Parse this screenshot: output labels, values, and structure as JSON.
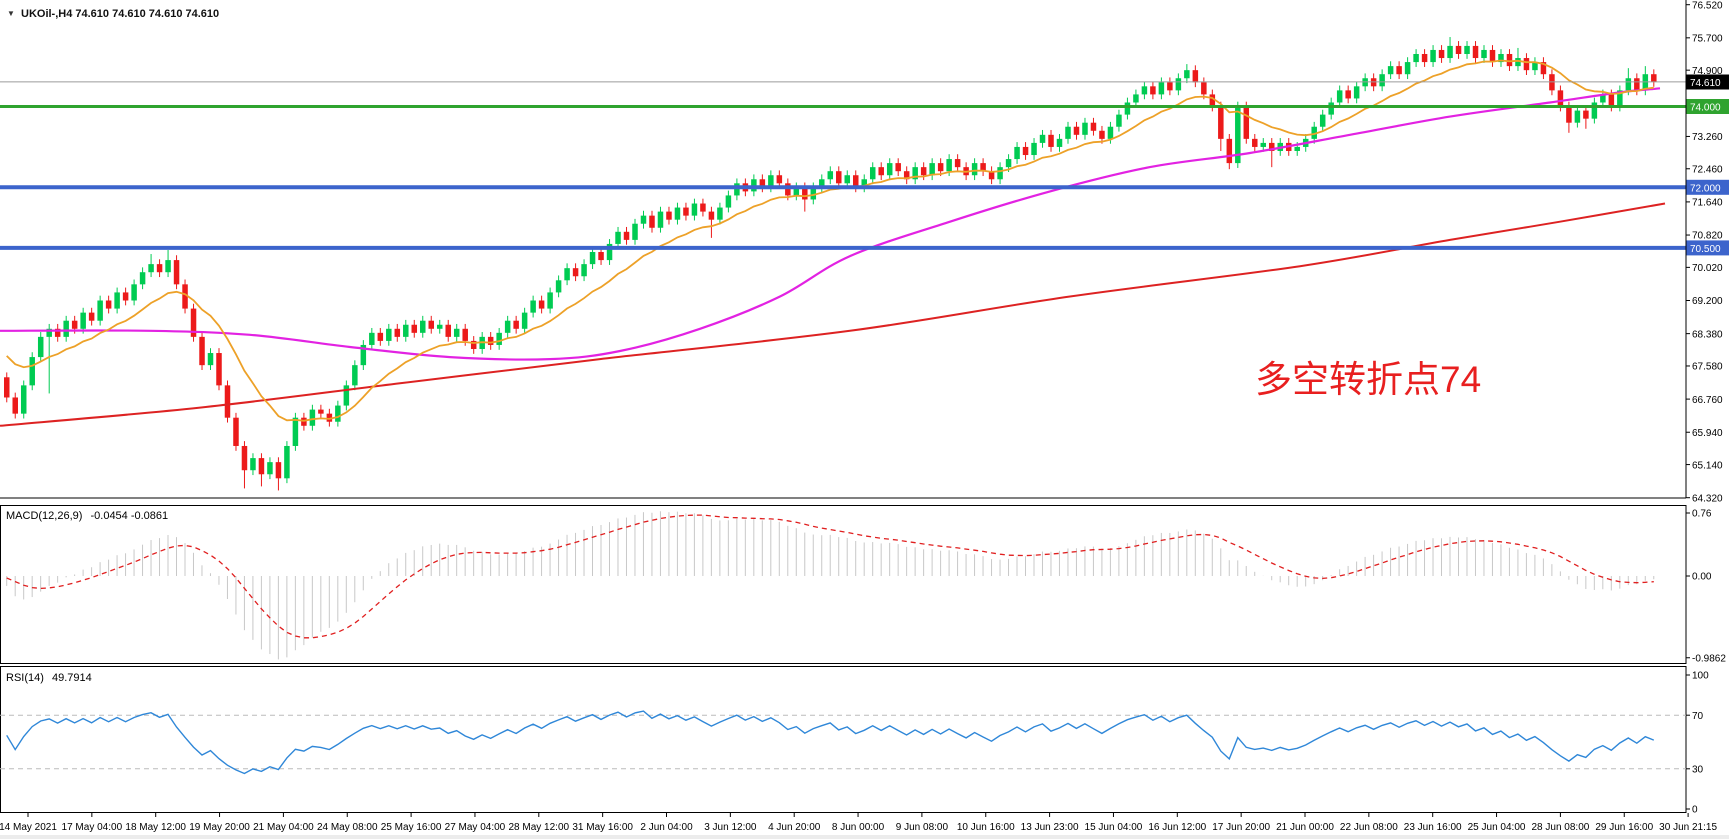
{
  "header": {
    "dropdown_icon": "▼",
    "symbol_line": "UKOil-,H4 74.610 74.610 74.610 74.610"
  },
  "annotation": {
    "text": "多空转折点74",
    "color": "#e81f1f"
  },
  "chart_data": {
    "type": "candlestick",
    "symbol": "UKOil-",
    "timeframe": "H4",
    "quote_ohlc": [
      "74.610",
      "74.610",
      "74.610",
      "74.610"
    ],
    "price_axis": {
      "ticks": [
        {
          "label": "76.520",
          "price": 76.52
        },
        {
          "label": "75.700",
          "price": 75.7
        },
        {
          "label": "74.900",
          "price": 74.9
        },
        {
          "label": "73.260",
          "price": 73.26
        },
        {
          "label": "72.460",
          "price": 72.46
        },
        {
          "label": "71.640",
          "price": 71.64
        },
        {
          "label": "70.820",
          "price": 70.82
        },
        {
          "label": "70.020",
          "price": 70.02
        },
        {
          "label": "69.200",
          "price": 69.2
        },
        {
          "label": "68.380",
          "price": 68.38
        },
        {
          "label": "67.580",
          "price": 67.58
        },
        {
          "label": "66.760",
          "price": 66.76
        },
        {
          "label": "65.940",
          "price": 65.94
        },
        {
          "label": "65.140",
          "price": 65.14
        },
        {
          "label": "64.320",
          "price": 64.32
        }
      ],
      "top_price": 76.52,
      "bottom_price": 64.32
    },
    "current_price": {
      "label": "74.610",
      "price": 74.61,
      "line_color": "#9b9b9b",
      "box_bg": "#000000"
    },
    "hlines": [
      {
        "label": "74.000",
        "price": 74.0,
        "color": "#2fa32f",
        "width": 3
      },
      {
        "label": "72.000",
        "price": 72.0,
        "color": "#3c64cc",
        "width": 4
      },
      {
        "label": "70.500",
        "price": 70.5,
        "color": "#3c64cc",
        "width": 4
      }
    ],
    "candles": {
      "up_color": "#00cb52",
      "down_color": "#ec1a1a",
      "first_open": 67.3,
      "default_wick": 0.12,
      "closes": [
        66.8,
        66.4,
        67.1,
        67.8,
        68.3,
        68.5,
        68.3,
        68.7,
        68.5,
        68.9,
        68.7,
        69.2,
        69.0,
        69.4,
        69.2,
        69.6,
        69.9,
        70.1,
        69.9,
        70.2,
        69.6,
        69.0,
        68.3,
        67.6,
        67.9,
        67.1,
        66.3,
        65.6,
        65.0,
        65.3,
        64.9,
        65.2,
        64.8,
        65.6,
        66.3,
        66.1,
        66.5,
        66.4,
        66.2,
        66.6,
        67.1,
        67.6,
        68.1,
        68.4,
        68.2,
        68.5,
        68.3,
        68.6,
        68.4,
        68.7,
        68.5,
        68.6,
        68.3,
        68.5,
        68.2,
        68.0,
        68.3,
        68.1,
        68.4,
        68.7,
        68.5,
        68.9,
        69.2,
        69.0,
        69.4,
        69.7,
        70.0,
        69.8,
        70.1,
        70.4,
        70.2,
        70.6,
        70.9,
        70.7,
        71.1,
        71.3,
        71.0,
        71.4,
        71.2,
        71.5,
        71.3,
        71.6,
        71.4,
        71.2,
        71.5,
        71.8,
        72.1,
        71.9,
        72.2,
        72.0,
        72.3,
        72.1,
        71.8,
        72.0,
        71.7,
        72.0,
        72.2,
        72.4,
        72.1,
        72.3,
        72.0,
        72.2,
        72.5,
        72.3,
        72.6,
        72.4,
        72.2,
        72.5,
        72.3,
        72.6,
        72.4,
        72.7,
        72.5,
        72.3,
        72.6,
        72.4,
        72.2,
        72.5,
        72.7,
        73.0,
        72.8,
        73.1,
        73.3,
        73.0,
        73.2,
        73.5,
        73.3,
        73.6,
        73.4,
        73.2,
        73.5,
        73.8,
        74.1,
        74.3,
        74.5,
        74.3,
        74.6,
        74.4,
        74.7,
        74.9,
        74.6,
        74.3,
        74.0,
        73.2,
        72.6,
        74.0,
        73.2,
        73.0,
        73.1,
        72.9,
        73.1,
        72.9,
        73.0,
        73.2,
        73.5,
        73.8,
        74.1,
        74.4,
        74.2,
        74.5,
        74.7,
        74.5,
        74.8,
        75.0,
        74.8,
        75.1,
        75.3,
        75.1,
        75.4,
        75.2,
        75.5,
        75.3,
        75.5,
        75.2,
        75.4,
        75.1,
        75.3,
        75.0,
        75.2,
        74.9,
        75.1,
        74.8,
        74.4,
        74.0,
        73.6,
        73.9,
        73.7,
        74.1,
        74.3,
        74.0,
        74.4,
        74.7,
        74.4,
        74.8,
        74.61
      ],
      "high_overrides": {
        "17": 70.35,
        "19": 70.45,
        "139": 75.05,
        "170": 75.72,
        "178": 75.45,
        "191": 74.95,
        "193": 75.0
      },
      "low_overrides": {
        "5": 66.9,
        "28": 64.55,
        "30": 64.6,
        "32": 64.5,
        "83": 70.75,
        "94": 71.4,
        "143": 72.9,
        "144": 72.45,
        "149": 72.5,
        "184": 73.35,
        "186": 73.45
      }
    },
    "moving_averages": {
      "orange": {
        "kind": "ema_of_closes",
        "period": 13,
        "seed": 68.0,
        "color": "#eda128"
      },
      "magenta": {
        "kind": "anchors",
        "color": "#e222e2",
        "points": [
          [
            0,
            68.45
          ],
          [
            150,
            68.45
          ],
          [
            250,
            68.35
          ],
          [
            350,
            68.05
          ],
          [
            450,
            67.8
          ],
          [
            550,
            67.75
          ],
          [
            620,
            67.95
          ],
          [
            700,
            68.5
          ],
          [
            780,
            69.3
          ],
          [
            850,
            70.3
          ],
          [
            950,
            71.15
          ],
          [
            1050,
            71.9
          ],
          [
            1150,
            72.5
          ],
          [
            1250,
            72.85
          ],
          [
            1350,
            73.3
          ],
          [
            1450,
            73.75
          ],
          [
            1550,
            74.1
          ],
          [
            1620,
            74.35
          ],
          [
            1660,
            74.45
          ]
        ]
      },
      "red": {
        "kind": "anchors",
        "color": "#dd2222",
        "points": [
          [
            0,
            66.1
          ],
          [
            200,
            66.55
          ],
          [
            400,
            67.15
          ],
          [
            600,
            67.75
          ],
          [
            850,
            68.45
          ],
          [
            1070,
            69.3
          ],
          [
            1300,
            70.05
          ],
          [
            1450,
            70.7
          ],
          [
            1560,
            71.15
          ],
          [
            1665,
            71.6
          ]
        ]
      }
    },
    "macd": {
      "label": "MACD(12,26,9)",
      "values_text": "-0.0454 -0.0861",
      "fast": 12,
      "slow": 26,
      "signal": 9,
      "ema_seed": 68.3,
      "axis_ticks": [
        {
          "label": "0.76",
          "value": 0.76
        },
        {
          "label": "0.00",
          "value": 0.0
        },
        {
          "label": "-0.9862",
          "value": -0.9862
        }
      ],
      "bar_color": "#c8c8c8",
      "signal_color": "#e01f1f"
    },
    "rsi": {
      "label": "RSI(14)",
      "value_text": "49.7914",
      "period": 14,
      "levels": [
        70,
        30
      ],
      "axis_ticks": [
        {
          "label": "100",
          "value": 100
        },
        {
          "label": "70",
          "value": 70
        },
        {
          "label": "30",
          "value": 30
        },
        {
          "label": "0",
          "value": 0
        }
      ],
      "line_color": "#2f87d8",
      "level_color": "#bbbbbb"
    },
    "time_axis": {
      "labels": [
        "14 May 2021",
        "17 May 04:00",
        "18 May 12:00",
        "19 May 20:00",
        "21 May 04:00",
        "24 May 08:00",
        "25 May 16:00",
        "27 May 04:00",
        "28 May 12:00",
        "31 May 16:00",
        "2 Jun 04:00",
        "3 Jun 12:00",
        "4 Jun 20:00",
        "8 Jun 00:00",
        "9 Jun 08:00",
        "10 Jun 16:00",
        "13 Jun 23:00",
        "15 Jun 04:00",
        "16 Jun 12:00",
        "17 Jun 20:00",
        "21 Jun 00:00",
        "22 Jun 08:00",
        "23 Jun 16:00",
        "25 Jun 04:00",
        "28 Jun 08:00",
        "29 Jun 16:00",
        "30 Jun 21:15"
      ]
    }
  }
}
